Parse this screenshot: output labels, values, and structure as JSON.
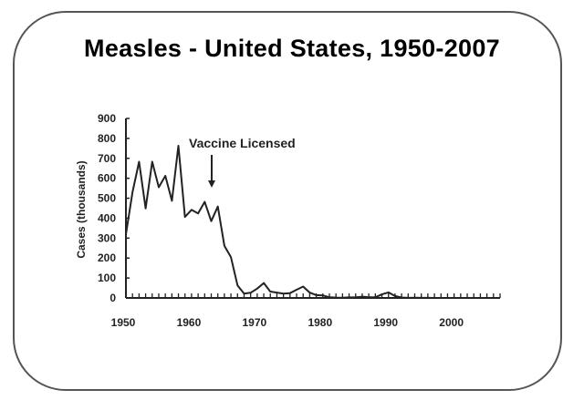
{
  "chart_data": {
    "type": "line",
    "title": "Measles - United States, 1950-2007",
    "xlabel": "",
    "ylabel": "Cases (thousands)",
    "xlim": [
      1950,
      2007
    ],
    "ylim": [
      0,
      900
    ],
    "x_ticks": [
      1950,
      1960,
      1970,
      1980,
      1990,
      2000
    ],
    "y_ticks": [
      0,
      100,
      200,
      300,
      400,
      500,
      600,
      700,
      800,
      900
    ],
    "grid": false,
    "legend": null,
    "annotations": [
      {
        "text": "Vaccine Licensed",
        "x": 1963,
        "arrow": true
      }
    ],
    "x": [
      1950,
      1951,
      1952,
      1953,
      1954,
      1955,
      1956,
      1957,
      1958,
      1959,
      1960,
      1961,
      1962,
      1963,
      1964,
      1965,
      1966,
      1967,
      1968,
      1969,
      1970,
      1971,
      1972,
      1973,
      1974,
      1975,
      1976,
      1977,
      1978,
      1979,
      1980,
      1981,
      1982,
      1983,
      1984,
      1985,
      1986,
      1987,
      1988,
      1989,
      1990,
      1991,
      1992,
      1993,
      1994,
      1995,
      1996,
      1997,
      1998,
      1999,
      2000,
      2001,
      2002,
      2003,
      2004,
      2005,
      2006,
      2007
    ],
    "series": [
      {
        "name": "Measles cases (thousands)",
        "values": [
          319,
          530,
          683,
          449,
          683,
          555,
          612,
          487,
          763,
          406,
          442,
          424,
          482,
          385,
          458,
          262,
          204,
          63,
          22,
          26,
          47,
          75,
          32,
          27,
          22,
          24,
          41,
          57,
          27,
          14,
          13,
          3,
          2,
          1.5,
          2.6,
          2.8,
          6.3,
          3.7,
          3.4,
          18,
          28,
          9.6,
          2.2,
          0.3,
          1,
          0.3,
          0.5,
          0.1,
          0.1,
          0.1,
          0.1,
          0.1,
          0.05,
          0.05,
          0.04,
          0.07,
          0.06,
          0.04
        ]
      }
    ]
  },
  "title": "Measles - United States, 1950-2007",
  "y_axis": {
    "label": "Cases (thousands)",
    "ticks": [
      "0",
      "100",
      "200",
      "300",
      "400",
      "500",
      "600",
      "700",
      "800",
      "900"
    ]
  },
  "x_axis": {
    "ticks": [
      "1950",
      "1960",
      "1970",
      "1980",
      "1990",
      "2000"
    ]
  },
  "annotation": {
    "label": "Vaccine Licensed"
  }
}
